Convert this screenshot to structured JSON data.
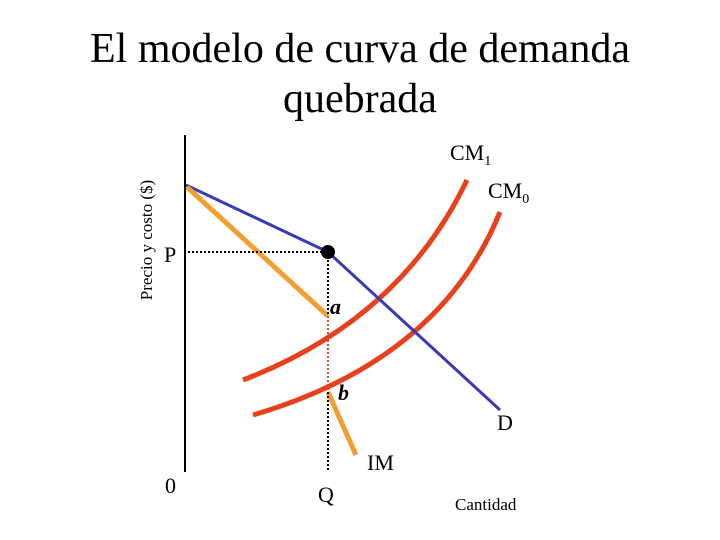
{
  "title": {
    "lines": [
      "El modelo de curva de demanda",
      "quebrada"
    ]
  },
  "axes": {
    "y_label": "Precio y costo ($)",
    "origin": "0",
    "x_label": "Cantidad",
    "price": "P",
    "quantity": "Q"
  },
  "curves": {
    "cm1": {
      "label": "CM",
      "subscript": "1"
    },
    "cm0": {
      "label": "CM",
      "subscript": "0"
    },
    "demand": "D",
    "marginal_revenue": "IM"
  },
  "points": {
    "a": "a",
    "b": "b"
  }
}
